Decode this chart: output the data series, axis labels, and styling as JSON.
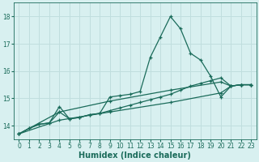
{
  "xlabel": "Humidex (Indice chaleur)",
  "bg_color": "#d8f0f0",
  "grid_color": "#c0dede",
  "line_color": "#1a6b5a",
  "xlim": [
    -0.5,
    23.5
  ],
  "ylim": [
    13.5,
    18.5
  ],
  "yticks": [
    14,
    15,
    16,
    17,
    18
  ],
  "xticks": [
    0,
    1,
    2,
    3,
    4,
    5,
    6,
    7,
    8,
    9,
    10,
    11,
    12,
    13,
    14,
    15,
    16,
    17,
    18,
    19,
    20,
    21,
    22,
    23
  ],
  "series1": {
    "points": [
      [
        0,
        13.7
      ],
      [
        1,
        13.9
      ],
      [
        2,
        14.05
      ],
      [
        3,
        14.1
      ],
      [
        4,
        14.7
      ],
      [
        5,
        14.25
      ],
      [
        6,
        14.3
      ],
      [
        7,
        14.4
      ],
      [
        8,
        14.45
      ],
      [
        9,
        15.05
      ],
      [
        10,
        15.1
      ],
      [
        11,
        15.15
      ],
      [
        12,
        15.25
      ],
      [
        13,
        16.5
      ],
      [
        14,
        17.25
      ],
      [
        15,
        18.0
      ],
      [
        16,
        17.55
      ],
      [
        17,
        16.65
      ],
      [
        18,
        16.4
      ],
      [
        19,
        15.8
      ],
      [
        20,
        15.05
      ],
      [
        21,
        15.45
      ],
      [
        22,
        15.5
      ],
      [
        23,
        15.5
      ]
    ]
  },
  "series2": {
    "points": [
      [
        0,
        13.7
      ],
      [
        1,
        13.9
      ],
      [
        2,
        14.05
      ],
      [
        3,
        14.1
      ],
      [
        4,
        14.5
      ],
      [
        5,
        14.25
      ],
      [
        6,
        14.3
      ],
      [
        7,
        14.4
      ],
      [
        8,
        14.45
      ],
      [
        9,
        14.55
      ],
      [
        10,
        14.65
      ],
      [
        11,
        14.75
      ],
      [
        12,
        14.85
      ],
      [
        13,
        14.95
      ],
      [
        14,
        15.05
      ],
      [
        15,
        15.15
      ],
      [
        16,
        15.3
      ],
      [
        17,
        15.45
      ],
      [
        18,
        15.55
      ],
      [
        19,
        15.65
      ],
      [
        20,
        15.75
      ],
      [
        21,
        15.45
      ],
      [
        22,
        15.5
      ],
      [
        23,
        15.5
      ]
    ]
  },
  "series3": {
    "points": [
      [
        0,
        13.7
      ],
      [
        4,
        14.5
      ],
      [
        9,
        14.9
      ],
      [
        15,
        15.3
      ],
      [
        20,
        15.6
      ],
      [
        21,
        15.45
      ],
      [
        22,
        15.5
      ],
      [
        23,
        15.5
      ]
    ]
  },
  "series4": {
    "points": [
      [
        0,
        13.7
      ],
      [
        4,
        14.2
      ],
      [
        9,
        14.5
      ],
      [
        15,
        14.85
      ],
      [
        20,
        15.2
      ],
      [
        21,
        15.45
      ],
      [
        22,
        15.5
      ],
      [
        23,
        15.5
      ]
    ]
  }
}
